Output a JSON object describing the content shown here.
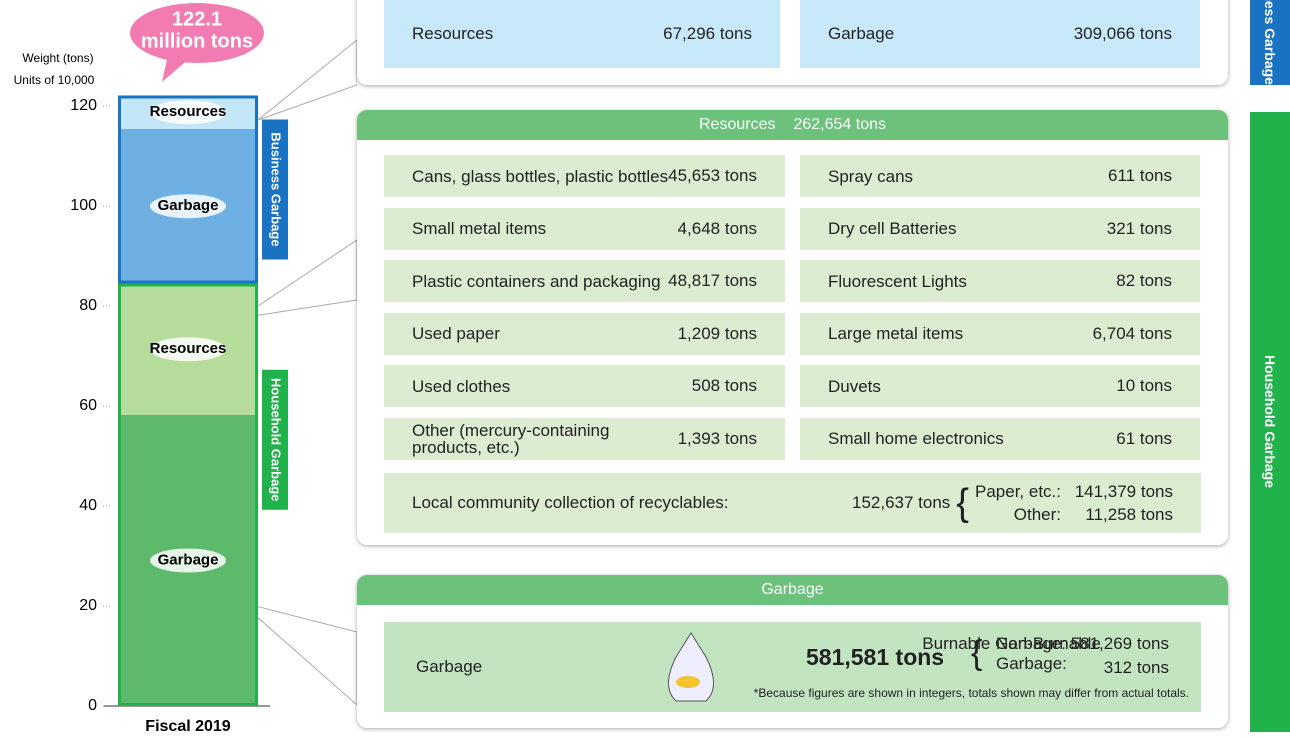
{
  "chart_data": {
    "type": "stacked_bar",
    "y_label": "Weight (tons)",
    "y_unit": "Units of 10,000",
    "total_label": [
      "122.1",
      "million tons"
    ],
    "categories": [
      "Fiscal 2019"
    ],
    "groups": [
      {
        "name": "Household Garbage",
        "color": "#22b24c"
      },
      {
        "name": "Business Garbage",
        "color": "#1a72c2"
      }
    ],
    "series": [
      {
        "name": "Garbage",
        "group": 0,
        "color": "#5dba6b",
        "values": [
          58.2
        ]
      },
      {
        "name": "Resources",
        "group": 0,
        "color": "#b6dc9c",
        "values": [
          26.3
        ]
      },
      {
        "name": "Garbage",
        "group": 1,
        "color": "#6fb0e4",
        "values": [
          30.9
        ]
      },
      {
        "name": "Resources",
        "group": 1,
        "color": "#c3e6f8",
        "values": [
          6.7
        ]
      }
    ],
    "ylim": [
      0,
      125
    ],
    "yticks": [
      0,
      20,
      40,
      60,
      80,
      100,
      120
    ]
  },
  "business_panel": {
    "items": [
      {
        "label": "Resources",
        "amount": "67,296 tons"
      },
      {
        "label": "Garbage",
        "amount": "309,066 tons"
      }
    ]
  },
  "resources_panel": {
    "title": "Resources",
    "amount": "262,654 tons",
    "items": [
      {
        "label": "Cans, glass bottles, plastic bottles",
        "amount": "45,653 tons"
      },
      {
        "label": "Spray cans",
        "amount": "611 tons"
      },
      {
        "label": "Small metal items",
        "amount": "4,648 tons"
      },
      {
        "label": "Dry cell Batteries",
        "amount": "321 tons"
      },
      {
        "label": "Plastic containers and packaging",
        "amount": "48,817 tons"
      },
      {
        "label": "Fluorescent Lights",
        "amount": "82 tons"
      },
      {
        "label": "Used paper",
        "amount": "1,209 tons"
      },
      {
        "label": "Large metal items",
        "amount": "6,704 tons"
      },
      {
        "label": "Used clothes",
        "amount": "508 tons"
      },
      {
        "label": "Duvets",
        "amount": "10 tons"
      },
      {
        "label": "Other (mercury-containing products, etc.)",
        "amount": "1,393 tons"
      },
      {
        "label": "Small home electronics",
        "amount": "61 tons"
      }
    ],
    "community": {
      "label": "Local community collection of recyclables:",
      "amount": "152,637 tons",
      "breakdown": [
        {
          "label": "Paper, etc.:",
          "amount": "141,379 tons"
        },
        {
          "label": "Other:",
          "amount": "11,258 tons"
        }
      ]
    }
  },
  "garbage_panel": {
    "title": "Garbage",
    "label": "Garbage",
    "amount": "581,581 tons",
    "breakdown": [
      {
        "label": "Burnable Garbage:",
        "amount": "581,269 tons"
      },
      {
        "label": "Non-Burnable Garbage:",
        "amount": "312 tons"
      }
    ],
    "note": "*Because figures are shown in integers, totals shown may differ from actual totals."
  },
  "side_labels": [
    "Business Garbage",
    "Household Garbage"
  ]
}
